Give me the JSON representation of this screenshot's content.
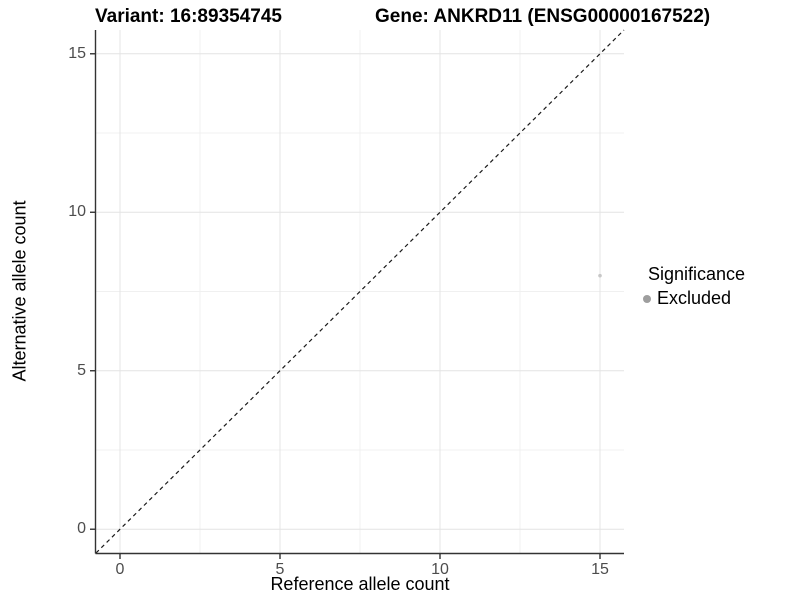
{
  "chart_data": {
    "type": "scatter",
    "title_left": "Variant: 16:89354745",
    "title_right": "Gene: ANKRD11 (ENSG00000167522)",
    "xlabel": "Reference allele count",
    "ylabel": "Alternative allele count",
    "xlim": [
      -0.75,
      15.75
    ],
    "ylim": [
      -0.75,
      15.75
    ],
    "x_ticks": [
      0,
      5,
      10,
      15
    ],
    "y_ticks": [
      0,
      5,
      10,
      15
    ],
    "x_minor_ticks": [
      2.5,
      7.5,
      12.5
    ],
    "y_minor_ticks": [
      2.5,
      7.5,
      12.5
    ],
    "grid": "on",
    "identity_line": {
      "style": "dashed",
      "from": [
        -0.75,
        -0.75
      ],
      "to": [
        15.75,
        15.75
      ],
      "color": "#1a1a1a"
    },
    "series": [
      {
        "name": "Excluded",
        "points": [
          {
            "x": 15,
            "y": 8
          }
        ],
        "color": "#c7c7c7",
        "radius": 1.8
      }
    ],
    "legend": {
      "title": "Significance",
      "position": "right",
      "items": [
        {
          "label": "Excluded",
          "color": "#9e9e9e"
        }
      ]
    },
    "colors": {
      "background": "#ffffff",
      "grid_major": "#e4e4e4",
      "grid_minor": "#f0f0f0",
      "axis_line": "#333333",
      "tick_mark": "#333333",
      "tick_text": "#4d4d4d"
    }
  }
}
